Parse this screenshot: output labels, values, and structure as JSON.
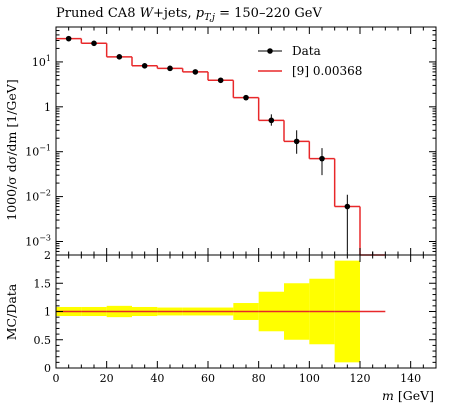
{
  "chart_data": {
    "type": "line",
    "title": "Pruned CA8 W+jets, p_T,j = 150–220 GeV",
    "title_parts": {
      "prefix": "Pruned CA8 ",
      "w": "W",
      "mid": "+jets, ",
      "p": "p",
      "sub": "T,j",
      "suffix": " = 150–220 GeV"
    },
    "xlabel_parts": {
      "var": "m",
      "unit": " [GeV]"
    },
    "ylabel": "1000/σ dσ/dm [1/GeV]",
    "ratio_ylabel": "MC/Data",
    "xlim": [
      0,
      150
    ],
    "ylim": [
      0.0005,
      60
    ],
    "yscale": "log",
    "ratio_ylim": [
      0,
      2
    ],
    "x_ticks": [
      "0",
      "20",
      "40",
      "60",
      "80",
      "100",
      "120",
      "140"
    ],
    "y_ticks": [
      {
        "value": 10,
        "base": "10",
        "exp": "1"
      },
      {
        "value": 1,
        "base": "1",
        "exp": ""
      },
      {
        "value": 0.1,
        "base": "10",
        "exp": "−1"
      },
      {
        "value": 0.01,
        "base": "10",
        "exp": "−2"
      },
      {
        "value": 0.001,
        "base": "10",
        "exp": "−3"
      }
    ],
    "ratio_ticks": [
      "0",
      "0.5",
      "1",
      "1.5",
      "2"
    ],
    "bin_edges": [
      0,
      10,
      20,
      30,
      40,
      50,
      60,
      70,
      80,
      90,
      100,
      110,
      120,
      130
    ],
    "data": {
      "name": "Data",
      "x": [
        5,
        15,
        25,
        35,
        45,
        55,
        65,
        75,
        85,
        95,
        105,
        115,
        125
      ],
      "y": [
        33,
        26,
        13,
        8.2,
        7.2,
        6.0,
        3.9,
        1.6,
        0.5,
        0.17,
        0.07,
        0.006,
        0.0004
      ],
      "y_low": [
        30,
        24,
        12,
        7.5,
        6.6,
        5.5,
        3.6,
        1.45,
        0.38,
        0.09,
        0.03,
        0.0006,
        0.0002
      ],
      "y_high": [
        36,
        28,
        14,
        8.9,
        7.8,
        6.5,
        4.2,
        1.75,
        0.68,
        0.3,
        0.12,
        0.011,
        0.0006
      ]
    },
    "mc": {
      "name": "[9] 0.00368",
      "y": [
        33,
        26,
        13,
        8.2,
        7.2,
        6.0,
        3.9,
        1.6,
        0.5,
        0.17,
        0.07,
        0.006,
        0.0004
      ],
      "color": "#e8282a"
    },
    "ratio": {
      "mc": [
        1,
        1,
        1,
        1,
        1,
        1,
        1,
        1,
        1,
        1,
        1,
        1,
        1
      ],
      "band_low": [
        0.92,
        0.92,
        0.9,
        0.92,
        0.93,
        0.93,
        0.93,
        0.85,
        0.65,
        0.5,
        0.42,
        0.1,
        null
      ],
      "band_high": [
        1.08,
        1.08,
        1.1,
        1.08,
        1.07,
        1.07,
        1.07,
        1.15,
        1.35,
        1.5,
        1.58,
        1.9,
        null
      ],
      "band_color": "#ffff00"
    },
    "grid": false,
    "legend_position": "top-right"
  }
}
